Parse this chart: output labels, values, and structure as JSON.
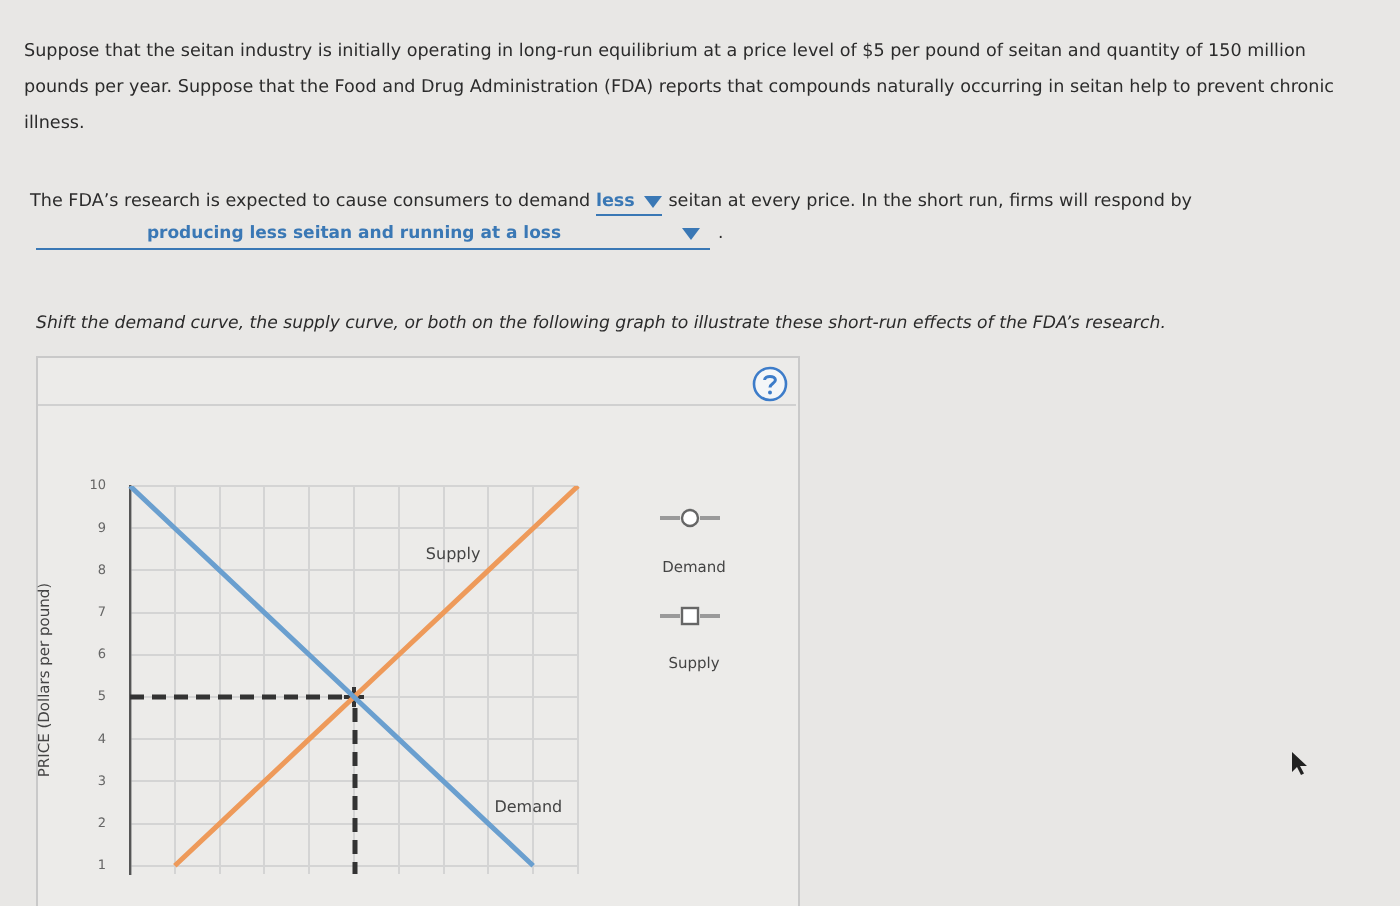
{
  "chart_data": {
    "type": "line",
    "ylabel": "PRICE (Dollars per pound)",
    "categories": [
      null,
      null,
      null,
      null,
      null,
      null,
      null,
      null,
      null,
      null,
      null
    ],
    "ylim": [
      0.8,
      10
    ],
    "yticks": [
      1,
      2,
      3,
      4,
      5,
      6,
      7,
      8,
      9,
      10
    ],
    "grid": true,
    "tick_labels": "y",
    "marker": "none",
    "series": [
      {
        "name": "Demand",
        "color": "#6a9fcf",
        "values": [
          10,
          9,
          8,
          7,
          6,
          5,
          4,
          3,
          2,
          1,
          null
        ]
      },
      {
        "name": "Supply",
        "color": "#ee9a5a",
        "values": [
          null,
          1,
          2,
          3,
          4,
          5,
          6,
          7,
          8,
          9,
          10
        ]
      },
      {
        "color": "#333333",
        "line_style": "dashed",
        "values": [
          5,
          5,
          5,
          5,
          5,
          5,
          null,
          null,
          null,
          null,
          null
        ]
      },
      {
        "type": "scatter",
        "color": "#333333",
        "marker": "cross",
        "values": [
          null,
          null,
          null,
          null,
          null,
          5,
          null,
          null,
          null,
          null,
          null
        ]
      }
    ],
    "annotations": [
      "Suppose that the seitan industry is initially operating in long-run equilibrium at a price level of $5 per pound of seitan and quantity of 150 million pounds per year. Suppose that the Food and Drug Administration (FDA) reports that compounds naturally occurring in seitan help to prevent chronic illness.",
      "The FDA’s research is expected to cause consumers to demand",
      "less",
      "seitan at every price. In the short run, firms will respond by",
      "producing less seitan and running at a loss",
      ".",
      "Shift the demand curve, the supply curve, or both on the following graph to illustrate these short-run effects of the FDA’s research.",
      "Demand",
      "Supply"
    ]
  }
}
